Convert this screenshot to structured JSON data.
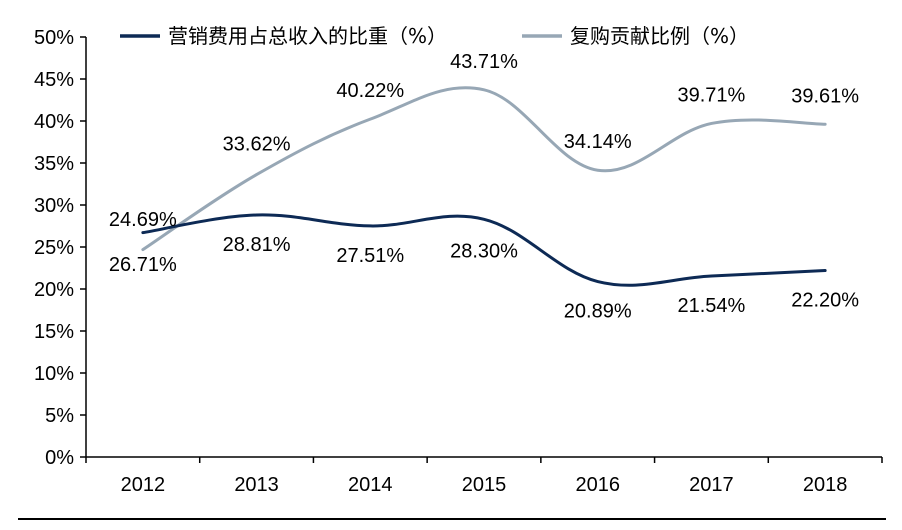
{
  "chart_data": {
    "type": "line",
    "x": [
      "2012",
      "2013",
      "2014",
      "2015",
      "2016",
      "2017",
      "2018"
    ],
    "ylim": [
      0,
      50
    ],
    "y_ticks": [
      "0%",
      "5%",
      "10%",
      "15%",
      "20%",
      "25%",
      "30%",
      "35%",
      "40%",
      "45%",
      "50%"
    ],
    "legend_position": "top",
    "grid": false,
    "series": [
      {
        "name": "营销费用占总收入的比重（%）",
        "color": "#0d2a55",
        "values": [
          26.71,
          28.81,
          27.51,
          28.3,
          20.89,
          21.54,
          22.2
        ],
        "labels": [
          "26.71%",
          "28.81%",
          "27.51%",
          "28.30%",
          "20.89%",
          "21.54%",
          "22.20%"
        ]
      },
      {
        "name": "复购贡献比例（%）",
        "color": "#97a7b5",
        "values": [
          24.69,
          33.62,
          40.22,
          43.71,
          34.14,
          39.71,
          39.61
        ],
        "labels": [
          "24.69%",
          "33.62%",
          "40.22%",
          "43.71%",
          "34.14%",
          "39.71%",
          "39.61%"
        ]
      }
    ]
  }
}
